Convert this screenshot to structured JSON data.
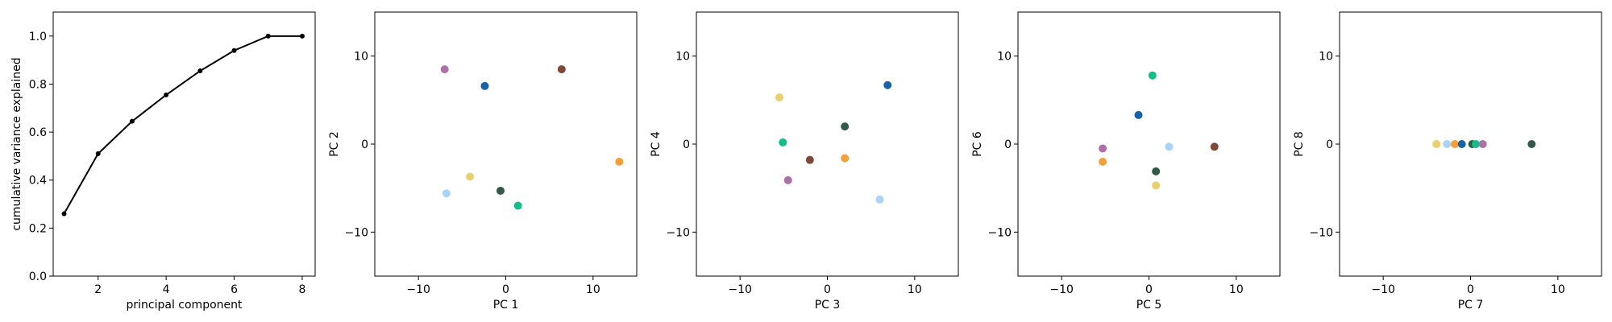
{
  "chart_data": [
    {
      "type": "line",
      "xlabel": "principal component",
      "ylabel": "cumulative variance explained",
      "xlim": [
        0.68,
        8.38
      ],
      "ylim": [
        0.0,
        1.1
      ],
      "xticks": [
        2,
        4,
        6,
        8
      ],
      "yticks": [
        0.0,
        0.2,
        0.4,
        0.6,
        0.8,
        1.0
      ],
      "xtick_labels": [
        "2",
        "4",
        "6",
        "8"
      ],
      "ytick_labels": [
        "0.0",
        "0.2",
        "0.4",
        "0.6",
        "0.8",
        "1.0"
      ],
      "grid": false,
      "series": [
        {
          "color": "#000000",
          "x": [
            1,
            2,
            3,
            4,
            5,
            6,
            7,
            8
          ],
          "y": [
            0.26,
            0.51,
            0.645,
            0.755,
            0.855,
            0.94,
            1.0,
            1.0
          ]
        }
      ]
    },
    {
      "type": "scatter",
      "xlabel": "PC 1",
      "ylabel": "PC 2",
      "xlim": [
        -15,
        15
      ],
      "ylim": [
        -15,
        15
      ],
      "xticks": [
        -10,
        0,
        10
      ],
      "yticks": [
        -10,
        0,
        10
      ],
      "xtick_labels": [
        "−10",
        "0",
        "10"
      ],
      "ytick_labels": [
        "−10",
        "0",
        "10"
      ],
      "grid": false,
      "points": [
        {
          "x": -7.0,
          "y": 8.5,
          "color": "#ad71a8"
        },
        {
          "x": -2.4,
          "y": 6.6,
          "color": "#1862a8"
        },
        {
          "x": 6.4,
          "y": 8.5,
          "color": "#80483a"
        },
        {
          "x": 13.0,
          "y": -2.0,
          "color": "#f3a03a"
        },
        {
          "x": -4.1,
          "y": -3.7,
          "color": "#e8d06e"
        },
        {
          "x": -0.6,
          "y": -5.3,
          "color": "#315a46"
        },
        {
          "x": 1.4,
          "y": -7.0,
          "color": "#12bf8a"
        },
        {
          "x": -6.8,
          "y": -5.6,
          "color": "#a9d4f7"
        }
      ]
    },
    {
      "type": "scatter",
      "xlabel": "PC 3",
      "ylabel": "PC 4",
      "xlim": [
        -15,
        15
      ],
      "ylim": [
        -15,
        15
      ],
      "xticks": [
        -10,
        0,
        10
      ],
      "yticks": [
        -10,
        0,
        10
      ],
      "xtick_labels": [
        "−10",
        "0",
        "10"
      ],
      "ytick_labels": [
        "−10",
        "0",
        "10"
      ],
      "grid": false,
      "points": [
        {
          "x": -5.5,
          "y": 5.3,
          "color": "#e8d06e"
        },
        {
          "x": 6.9,
          "y": 6.7,
          "color": "#1862a8"
        },
        {
          "x": 2.0,
          "y": 2.0,
          "color": "#315a46"
        },
        {
          "x": -5.1,
          "y": 0.2,
          "color": "#12bf8a"
        },
        {
          "x": -2.0,
          "y": -1.8,
          "color": "#80483a"
        },
        {
          "x": 2.0,
          "y": -1.6,
          "color": "#f3a03a"
        },
        {
          "x": -4.5,
          "y": -4.1,
          "color": "#ad71a8"
        },
        {
          "x": 6.0,
          "y": -6.3,
          "color": "#a9d4f7"
        }
      ]
    },
    {
      "type": "scatter",
      "xlabel": "PC 5",
      "ylabel": "PC 6",
      "xlim": [
        -15,
        15
      ],
      "ylim": [
        -15,
        15
      ],
      "xticks": [
        -10,
        0,
        10
      ],
      "yticks": [
        -10,
        0,
        10
      ],
      "xtick_labels": [
        "−10",
        "0",
        "10"
      ],
      "ytick_labels": [
        "−10",
        "0",
        "10"
      ],
      "grid": false,
      "points": [
        {
          "x": 0.4,
          "y": 7.8,
          "color": "#12bf8a"
        },
        {
          "x": -1.2,
          "y": 3.3,
          "color": "#1862a8"
        },
        {
          "x": -5.3,
          "y": -0.5,
          "color": "#ad71a8"
        },
        {
          "x": 2.3,
          "y": -0.3,
          "color": "#a9d4f7"
        },
        {
          "x": 7.5,
          "y": -0.3,
          "color": "#80483a"
        },
        {
          "x": -5.3,
          "y": -2.0,
          "color": "#f3a03a"
        },
        {
          "x": 0.8,
          "y": -3.1,
          "color": "#315a46"
        },
        {
          "x": 0.8,
          "y": -4.7,
          "color": "#e8d06e"
        }
      ]
    },
    {
      "type": "scatter",
      "xlabel": "PC 7",
      "ylabel": "PC 8",
      "xlim": [
        -15,
        15
      ],
      "ylim": [
        -15,
        15
      ],
      "xticks": [
        -10,
        0,
        10
      ],
      "yticks": [
        -10,
        0,
        10
      ],
      "xtick_labels": [
        "−10",
        "0",
        "10"
      ],
      "ytick_labels": [
        "−10",
        "0",
        "10"
      ],
      "grid": false,
      "points": [
        {
          "x": -3.9,
          "y": 0.0,
          "color": "#e8d06e"
        },
        {
          "x": -2.7,
          "y": 0.0,
          "color": "#a9d4f7"
        },
        {
          "x": -1.8,
          "y": 0.0,
          "color": "#f3a03a"
        },
        {
          "x": -1.0,
          "y": 0.0,
          "color": "#1862a8"
        },
        {
          "x": 0.2,
          "y": 0.0,
          "color": "#315a46"
        },
        {
          "x": 0.6,
          "y": 0.0,
          "color": "#12bf8a"
        },
        {
          "x": 1.4,
          "y": 0.0,
          "color": "#ad71a8"
        },
        {
          "x": 7.0,
          "y": 0.0,
          "color": "#315a46"
        }
      ]
    }
  ]
}
